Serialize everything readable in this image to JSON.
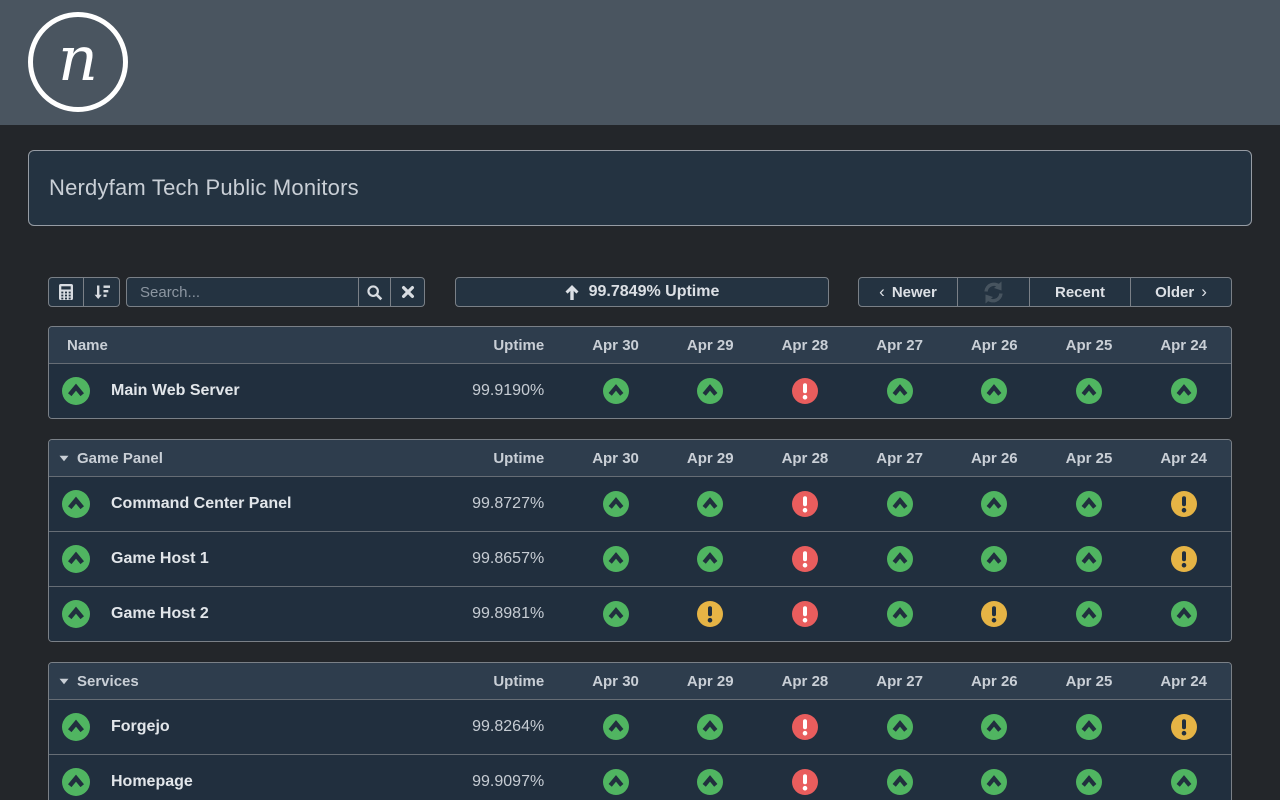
{
  "logo": {
    "letter": "n"
  },
  "page_title": "Nerdyfam Tech Public Monitors",
  "toolbar": {
    "search": {
      "placeholder": "Search..."
    },
    "summary": {
      "uptime_label": "99.7849% Uptime"
    },
    "pager": {
      "newer": "Newer",
      "recent": "Recent",
      "older": "Older",
      "chevron_left": "‹",
      "chevron_right": "›"
    }
  },
  "columns": {
    "name": "Name",
    "uptime": "Uptime",
    "dates": [
      "Apr 30",
      "Apr 29",
      "Apr 28",
      "Apr 27",
      "Apr 26",
      "Apr 25",
      "Apr 24"
    ]
  },
  "tables": [
    {
      "group": null,
      "rows": [
        {
          "name": "Main Web Server",
          "uptime": "99.9190%",
          "overall": "up",
          "days": [
            "up",
            "up",
            "down",
            "up",
            "up",
            "up",
            "up"
          ]
        }
      ]
    },
    {
      "group": "Game Panel",
      "rows": [
        {
          "name": "Command Center Panel",
          "uptime": "99.8727%",
          "overall": "up",
          "days": [
            "up",
            "up",
            "down",
            "up",
            "up",
            "up",
            "warn"
          ]
        },
        {
          "name": "Game Host 1",
          "uptime": "99.8657%",
          "overall": "up",
          "days": [
            "up",
            "up",
            "down",
            "up",
            "up",
            "up",
            "warn"
          ]
        },
        {
          "name": "Game Host 2",
          "uptime": "99.8981%",
          "overall": "up",
          "days": [
            "up",
            "warn",
            "down",
            "up",
            "warn",
            "up",
            "up"
          ]
        }
      ]
    },
    {
      "group": "Services",
      "rows": [
        {
          "name": "Forgejo",
          "uptime": "99.8264%",
          "overall": "up",
          "days": [
            "up",
            "up",
            "down",
            "up",
            "up",
            "up",
            "warn"
          ]
        },
        {
          "name": "Homepage",
          "uptime": "99.9097%",
          "overall": "up",
          "days": [
            "up",
            "up",
            "down",
            "up",
            "up",
            "up",
            "up"
          ]
        }
      ]
    }
  ],
  "status_colors": {
    "up": "#50B561",
    "down": "#E95D5D",
    "warn": "#E6B445",
    "glyph_dark": "#212F3E",
    "glyph_light": "#FFFFFF"
  }
}
